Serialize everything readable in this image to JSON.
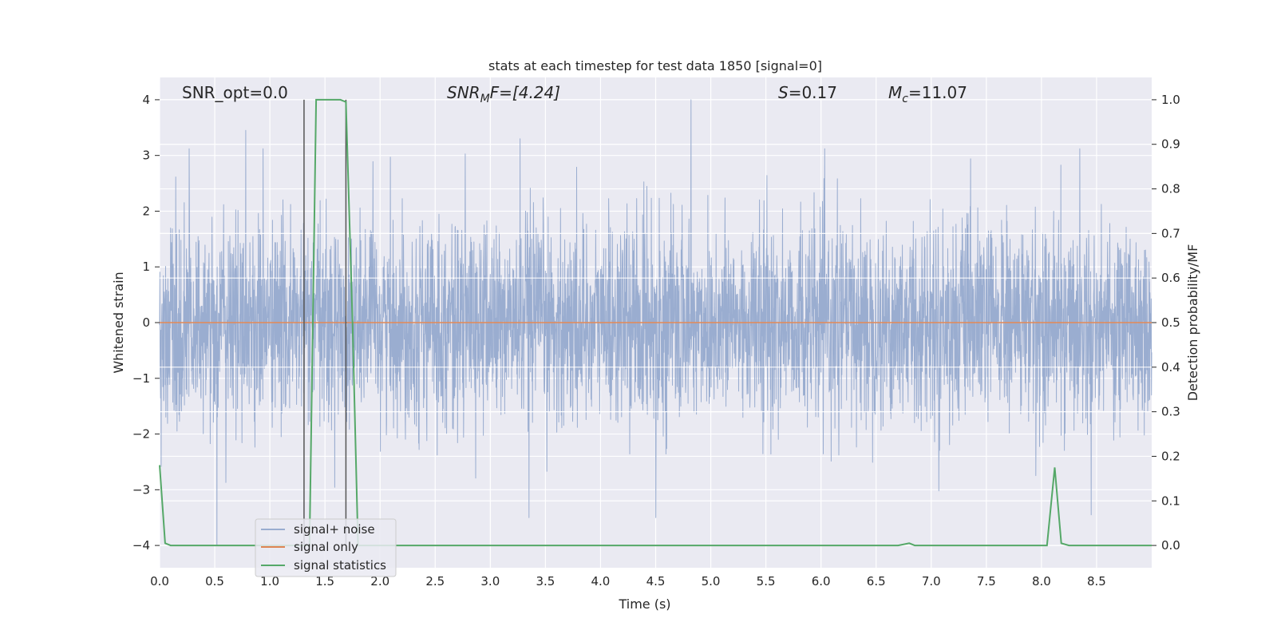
{
  "chart_data": {
    "type": "line",
    "title": "stats at each timestep for test data 1850 [signal=0]",
    "xlabel": "Time (s)",
    "ylabel_left": "Whitened strain",
    "ylabel_right": "Detection probability/MF",
    "xlim": [
      0.0,
      9.0
    ],
    "ylim_left": [
      -4.4,
      4.4
    ],
    "ylim_right": [
      -0.05,
      1.05
    ],
    "x_ticks": [
      "0.0",
      "0.5",
      "1.0",
      "1.5",
      "2.0",
      "2.5",
      "3.0",
      "3.5",
      "4.0",
      "4.5",
      "5.0",
      "5.5",
      "6.0",
      "6.5",
      "7.0",
      "7.5",
      "8.0",
      "8.5"
    ],
    "y_ticks_left": [
      "4",
      "3",
      "2",
      "1",
      "0",
      "−1",
      "−2",
      "−3",
      "−4"
    ],
    "y_ticks_right": [
      "1.0",
      "0.9",
      "0.8",
      "0.7",
      "0.6",
      "0.5",
      "0.4",
      "0.3",
      "0.2",
      "0.1",
      "0.0"
    ],
    "grid": true,
    "legend_position": "lower-left",
    "annotations": {
      "snr_opt": "SNR_opt=0.0",
      "snr_mf_base": "SNR",
      "snr_mf_sub": "M",
      "snr_mf_tail": "F=[4.24]",
      "s_var": "S",
      "s_value": "=0.17",
      "mc_var": "M",
      "mc_sub": "c",
      "mc_value": "=11.07"
    },
    "vlines_x": [
      1.31,
      1.69
    ],
    "series": [
      {
        "name": "signal+ noise",
        "color": "#9aadd0",
        "axis": "left",
        "description_values": {
          "typical_envelope": [
            -1.6,
            1.6
          ],
          "peak_max": 4.0,
          "peak_min": -4.0,
          "notable_peaks": [
            {
              "x": 0.78,
              "y": 3.45
            },
            {
              "x": 3.27,
              "y": 3.3
            },
            {
              "x": 4.82,
              "y": 4.0
            },
            {
              "x": 0.52,
              "y": -4.0
            },
            {
              "x": 3.35,
              "y": -3.5
            },
            {
              "x": 4.5,
              "y": -3.5
            },
            {
              "x": 8.45,
              "y": -3.45
            }
          ]
        }
      },
      {
        "name": "signal only",
        "color": "#dd8452",
        "axis": "left",
        "x": [
          0.0,
          9.0
        ],
        "y": [
          0.0,
          0.0
        ]
      },
      {
        "name": "signal statistics",
        "color": "#55a868",
        "axis": "right",
        "x": [
          0.0,
          0.05,
          0.1,
          1.31,
          1.36,
          1.42,
          1.58,
          1.64,
          1.69,
          1.75,
          1.8,
          6.7,
          6.8,
          6.85,
          8.05,
          8.12,
          8.18,
          8.25,
          9.0
        ],
        "y": [
          0.18,
          0.005,
          0.0,
          0.0,
          0.0,
          1.0,
          1.0,
          1.0,
          0.995,
          0.5,
          0.0,
          0.0,
          0.005,
          0.0,
          0.0,
          0.175,
          0.005,
          0.0,
          0.0
        ]
      }
    ]
  }
}
